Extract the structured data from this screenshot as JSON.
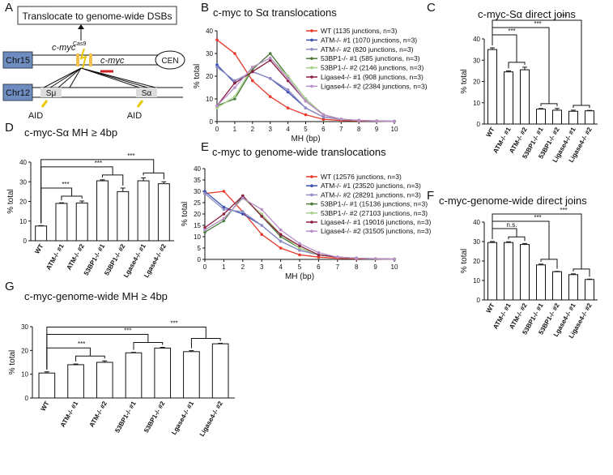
{
  "diagram": {
    "panel": "A",
    "box": "Translocate to genome-wide DSBs",
    "chr15": "Chr15",
    "cmyc_cas9": "c-myc",
    "cas9_sup": "Cas9",
    "cmyc": "c-myc",
    "cen": "CEN",
    "chr12": "Chr12",
    "smu": "Sμ",
    "salpha": "Sα",
    "aid1": "AID",
    "aid2": "AID"
  },
  "chart_data": [
    {
      "type": "line",
      "panel": "B",
      "title": "c-myc to Sα  translocations",
      "xlabel": "MH (bp)",
      "ylabel": "% total",
      "x": [
        0,
        1,
        2,
        3,
        4,
        5,
        6,
        7,
        8,
        9,
        10
      ],
      "xlim": [
        0,
        10
      ],
      "xticks": [
        0,
        1,
        2,
        3,
        4,
        5,
        6,
        7,
        8,
        9,
        10
      ],
      "ylim": [
        0,
        40
      ],
      "yticks": [
        0,
        10,
        20,
        30,
        40
      ],
      "legend": "upper right",
      "series": [
        {
          "name": "WT (1135 junctions, n=3)",
          "color": "#e8392a",
          "values": [
            36,
            30,
            18,
            11,
            6,
            3,
            1,
            0.5,
            0.3,
            0.2,
            0.1
          ]
        },
        {
          "name": "ATM-/- #1 (1070 junctions, n=3)",
          "color": "#3a4fb0",
          "values": [
            25,
            17,
            22,
            19,
            13,
            6,
            2,
            1,
            0.5,
            0.3,
            0.1
          ]
        },
        {
          "name": "ATM-/- #2 (820 junctions, n=3)",
          "color": "#8e8ec4",
          "values": [
            24,
            18,
            22,
            19,
            14,
            6,
            2,
            1,
            0.5,
            0.3,
            0.1
          ]
        },
        {
          "name": "53BP1-/- #1 (585 junctions, n=3)",
          "color": "#4a7a3a",
          "values": [
            7,
            10,
            23,
            30,
            20,
            10,
            3,
            1,
            0.5,
            0.2,
            0.1
          ]
        },
        {
          "name": "53BP1-/- #2 (2146 junctions, n=3)",
          "color": "#a6d08a",
          "values": [
            6,
            11,
            24,
            28,
            20,
            10,
            3,
            1,
            0.5,
            0.2,
            0.1
          ]
        },
        {
          "name": "Ligase4-/- #1 (908 junctions, n=3)",
          "color": "#8b2040",
          "values": [
            7,
            17,
            22,
            27,
            18,
            9,
            3,
            1,
            0.5,
            0.2,
            0.1
          ]
        },
        {
          "name": "Ligase4-/- #2 (2384 junctions, n=3)",
          "color": "#b890c8",
          "values": [
            7,
            15,
            24,
            28,
            19,
            9,
            3,
            1,
            0.5,
            0.2,
            0.1
          ]
        }
      ]
    },
    {
      "type": "bar",
      "panel": "C",
      "title": "c-myc-Sα direct joins",
      "ylabel": "% total",
      "ylim": [
        0,
        40
      ],
      "yticks": [
        0,
        10,
        20,
        30,
        40
      ],
      "color": "#ffffff",
      "categories": [
        "WT",
        "ATM-/- #1",
        "ATM-/- #2",
        "53BP1-/- #1",
        "53BP1-/- #2",
        "Ligase4-/- #1",
        "Ligase4-/- #2"
      ],
      "values": [
        35,
        24.5,
        25.5,
        7,
        6.5,
        6,
        6.2
      ],
      "errors": [
        0.8,
        0.5,
        1.2,
        0.3,
        0.8,
        0.5,
        0.2
      ],
      "significance": [
        "***",
        "***",
        "***"
      ]
    },
    {
      "type": "bar",
      "panel": "D",
      "title": "c-myc-Sα MH ≥ 4bp",
      "ylabel": "% total",
      "ylim": [
        0,
        40
      ],
      "yticks": [
        0,
        10,
        20,
        30,
        40
      ],
      "color": "#ffffff",
      "categories": [
        "WT",
        "ATM-/- #1",
        "ATM-/- #2",
        "53BP1-/- #1",
        "53BP1-/- #2",
        "Lgase4-/- #1",
        "Lgase4-/- #2"
      ],
      "values": [
        7.5,
        19,
        19.2,
        30.5,
        25,
        30.5,
        29
      ],
      "errors": [
        0.2,
        0.3,
        1,
        0.5,
        1.8,
        1.5,
        1
      ],
      "significance": [
        "***",
        "***",
        "***"
      ]
    },
    {
      "type": "line",
      "panel": "E",
      "title": "c-myc to genome-wide translocations",
      "xlabel": "MH (bp)",
      "ylabel": "% total",
      "x": [
        0,
        1,
        2,
        3,
        4,
        5,
        6,
        7,
        8,
        9,
        10
      ],
      "xlim": [
        0,
        10
      ],
      "xticks": [
        0,
        1,
        2,
        3,
        4,
        5,
        6,
        7,
        8,
        9,
        10
      ],
      "ylim": [
        0,
        40
      ],
      "yticks": [
        0,
        5,
        10,
        15,
        20,
        25,
        30,
        35,
        40
      ],
      "legend": "upper right",
      "series": [
        {
          "name": "WT (12576 junctions, n=3)",
          "color": "#e8392a",
          "values": [
            29,
            30,
            21,
            11,
            5,
            2,
            1,
            0.5,
            0.3,
            0.2,
            0.1
          ]
        },
        {
          "name": "ATM-/- #1 (23520 junctions, n=3)",
          "color": "#3a4fb0",
          "values": [
            30,
            23,
            20,
            15,
            8,
            4,
            2,
            1,
            0.5,
            0.3,
            0.1
          ]
        },
        {
          "name": "ATM-/- #2 (28291 junctions, n=3)",
          "color": "#8e8ec4",
          "values": [
            29,
            22,
            21,
            15,
            8,
            4,
            2,
            1,
            0.5,
            0.3,
            0.1
          ]
        },
        {
          "name": "53BP1-/- #1 (15136 junctions, n=3)",
          "color": "#4a7a3a",
          "values": [
            12,
            17,
            28,
            19,
            10,
            5,
            2,
            1,
            0.5,
            0.2,
            0.1
          ]
        },
        {
          "name": "53BP1-/- #2 (27103 junctions, n=3)",
          "color": "#a6d08a",
          "values": [
            13,
            18,
            27,
            20,
            11,
            5,
            2,
            1,
            0.5,
            0.2,
            0.1
          ]
        },
        {
          "name": "Ligase4-/- #1 (19016 junctions, n=3)",
          "color": "#8b2040",
          "values": [
            14,
            20,
            28,
            19,
            11,
            6,
            2,
            1,
            0.5,
            0.2,
            0.1
          ]
        },
        {
          "name": "Ligase4-/- #2 (31505 junctions, n=3)",
          "color": "#b890c8",
          "values": [
            13,
            18,
            27,
            22,
            13,
            7,
            3,
            1,
            0.5,
            0.2,
            0.1
          ]
        }
      ]
    },
    {
      "type": "bar",
      "panel": "F",
      "title": "c-myc-genome-wide direct joins",
      "ylabel": "% total",
      "ylim": [
        0,
        40
      ],
      "yticks": [
        0,
        10,
        20,
        30,
        40
      ],
      "color": "#ffffff",
      "categories": [
        "WT",
        "ATM-/- #1",
        "ATM-/- #2",
        "53BP1-/- #1",
        "53BP1-/- #2",
        "Lgase4-/- #1",
        "Ligase4-/- #2"
      ],
      "values": [
        29.5,
        29.5,
        28.5,
        18,
        14.5,
        13,
        10.5
      ],
      "errors": [
        0.5,
        0.4,
        0.5,
        0.4,
        0.2,
        0.4,
        0.2
      ],
      "significance": [
        "n.s.",
        "***",
        "***"
      ]
    },
    {
      "type": "bar",
      "panel": "G",
      "title": "c-myc-genome-wide MH ≥ 4bp",
      "ylabel": "% total",
      "ylim": [
        0,
        30
      ],
      "yticks": [
        0,
        10,
        20,
        30
      ],
      "color": "#ffffff",
      "categories": [
        "WT",
        "ATM-/- #1",
        "ATM-/- #2",
        "53BP1-/- #1",
        "53BP1-/- #2",
        "Lgase4-/- #1",
        "Ligase4-/- #2"
      ],
      "values": [
        10.5,
        14,
        15,
        19,
        21,
        19.5,
        22.8
      ],
      "errors": [
        0.5,
        0.3,
        0.6,
        0.2,
        0.3,
        0.4,
        0.2
      ],
      "significance": [
        "***",
        "***",
        "***"
      ]
    }
  ]
}
